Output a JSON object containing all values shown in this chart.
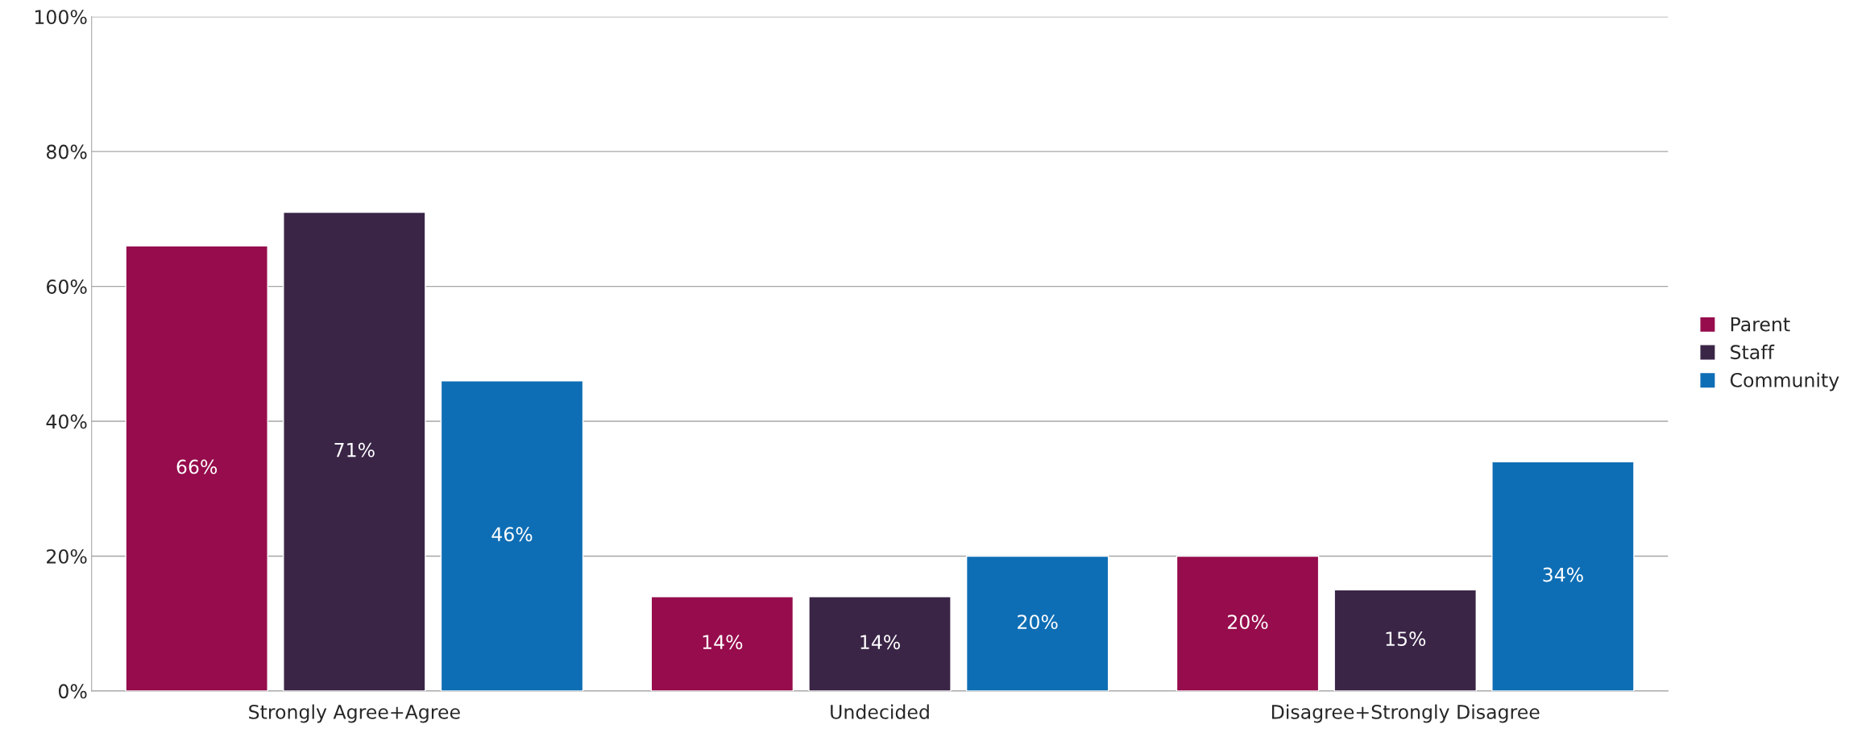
{
  "chart_data": {
    "type": "bar",
    "categories": [
      "Strongly Agree+Agree",
      "Undecided",
      "Disagree+Strongly Disagree"
    ],
    "series": [
      {
        "name": "Parent",
        "color": "#960c4c",
        "values": [
          66,
          14,
          20
        ]
      },
      {
        "name": "Staff",
        "color": "#3a2547",
        "values": [
          71,
          14,
          15
        ]
      },
      {
        "name": "Community",
        "color": "#0e6eb5",
        "values": [
          46,
          20,
          34
        ]
      }
    ],
    "value_labels": [
      [
        "66%",
        "14%",
        "20%"
      ],
      [
        "71%",
        "14%",
        "15%"
      ],
      [
        "46%",
        "20%",
        "34%"
      ]
    ],
    "ylim": [
      0,
      100
    ],
    "yticks": [
      {
        "value": 0,
        "label": "0%"
      },
      {
        "value": 20,
        "label": "20%"
      },
      {
        "value": 40,
        "label": "40%"
      },
      {
        "value": 60,
        "label": "60%"
      },
      {
        "value": 80,
        "label": "80%"
      },
      {
        "value": 100,
        "label": "100%"
      }
    ],
    "grid": "y",
    "legend": "right"
  }
}
